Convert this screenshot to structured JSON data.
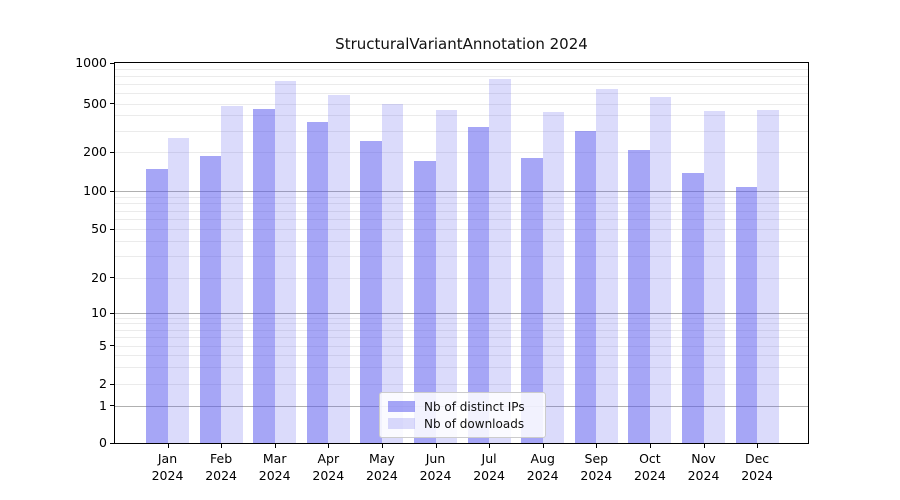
{
  "title": "StructuralVariantAnnotation 2024",
  "colors": {
    "bar_ips": "rgba(85,85,238,0.52)",
    "bar_downloads": "rgba(85,85,238,0.21)",
    "grid_major": "#b0b0b0",
    "grid_minor": "#ebebeb",
    "axis": "#000000"
  },
  "legend": {
    "items": [
      {
        "label": "Nb of distinct IPs",
        "series": "ips"
      },
      {
        "label": "Nb of downloads",
        "series": "downloads"
      }
    ]
  },
  "chart_data": {
    "type": "bar",
    "title": "StructuralVariantAnnotation 2024",
    "categories": [
      "Jan",
      "Feb",
      "Mar",
      "Apr",
      "May",
      "Jun",
      "Jul",
      "Aug",
      "Sep",
      "Oct",
      "Nov",
      "Dec"
    ],
    "year_label": "2024",
    "series": [
      {
        "name": "Nb of distinct IPs",
        "values": [
          148,
          188,
          450,
          355,
          245,
          170,
          320,
          180,
          300,
          207,
          137,
          107
        ]
      },
      {
        "name": "Nb of downloads",
        "values": [
          262,
          480,
          730,
          575,
          500,
          445,
          760,
          430,
          645,
          560,
          435,
          445
        ]
      }
    ],
    "y_axis": {
      "scale": "log-like (asinh), 0 at baseline",
      "tick_values": [
        0,
        1,
        2,
        5,
        10,
        20,
        50,
        100,
        200,
        500,
        1000
      ],
      "tick_labels": [
        "0",
        "1",
        "2",
        "5",
        "10",
        "20",
        "50",
        "100",
        "200",
        "500",
        "1000"
      ],
      "major_grid_values": [
        1,
        10,
        100
      ],
      "minor_grid_values": [
        2,
        3,
        4,
        5,
        6,
        7,
        8,
        9,
        20,
        30,
        40,
        50,
        60,
        70,
        80,
        90,
        200,
        300,
        400,
        500,
        600,
        700,
        800,
        900
      ],
      "range": [
        0,
        1000
      ]
    },
    "xlabel": "",
    "ylabel": "",
    "grid": true,
    "legend_position": "lower center inside"
  }
}
